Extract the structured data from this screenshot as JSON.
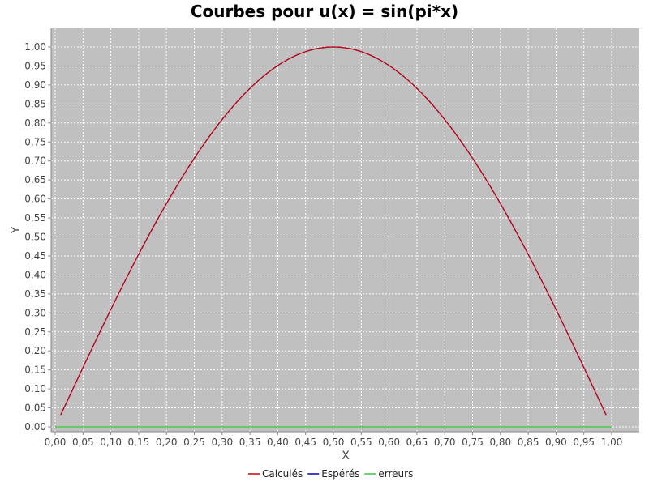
{
  "chart_data": {
    "type": "line",
    "title": "Courbes pour u(x) = sin(pi*x)",
    "xlabel": "X",
    "ylabel": "Y",
    "xlim": [
      0.0,
      1.0
    ],
    "ylim": [
      0.0,
      1.0
    ],
    "x_ticks": [
      "0,00",
      "0,05",
      "0,10",
      "0,15",
      "0,20",
      "0,25",
      "0,30",
      "0,35",
      "0,40",
      "0,45",
      "0,50",
      "0,55",
      "0,60",
      "0,65",
      "0,70",
      "0,75",
      "0,80",
      "0,85",
      "0,90",
      "0,95",
      "1,00"
    ],
    "y_ticks": [
      "0,00",
      "0,05",
      "0,10",
      "0,15",
      "0,20",
      "0,25",
      "0,30",
      "0,35",
      "0,40",
      "0,45",
      "0,50",
      "0,55",
      "0,60",
      "0,65",
      "0,70",
      "0,75",
      "0,80",
      "0,85",
      "0,90",
      "0,95",
      "1,00"
    ],
    "grid": true,
    "legend_position": "bottom",
    "plot_background": "#c0c0c0",
    "x": [
      0.0,
      0.05,
      0.1,
      0.15,
      0.2,
      0.25,
      0.3,
      0.35,
      0.4,
      0.45,
      0.5,
      0.55,
      0.6,
      0.65,
      0.7,
      0.75,
      0.8,
      0.85,
      0.9,
      0.95,
      1.0
    ],
    "series": [
      {
        "name": "Calculés",
        "color": "#cc0000",
        "values": [
          0.0,
          0.156,
          0.309,
          0.454,
          0.588,
          0.707,
          0.809,
          0.891,
          0.951,
          0.988,
          1.0,
          0.988,
          0.951,
          0.891,
          0.809,
          0.707,
          0.588,
          0.454,
          0.309,
          0.156,
          0.0
        ]
      },
      {
        "name": "Espérés",
        "color": "#0000cc",
        "values": [
          0.0,
          0.156,
          0.309,
          0.454,
          0.588,
          0.707,
          0.809,
          0.891,
          0.951,
          0.988,
          1.0,
          0.988,
          0.951,
          0.891,
          0.809,
          0.707,
          0.588,
          0.454,
          0.309,
          0.156,
          0.0
        ]
      },
      {
        "name": "erreurs",
        "color": "#33cc33",
        "values": [
          0.0,
          0.0,
          0.0,
          0.0,
          0.0,
          0.0,
          0.0,
          0.0,
          0.0,
          0.0,
          0.0,
          0.0,
          0.0,
          0.0,
          0.0,
          0.0,
          0.0,
          0.0,
          0.0,
          0.0,
          0.0
        ]
      }
    ]
  }
}
